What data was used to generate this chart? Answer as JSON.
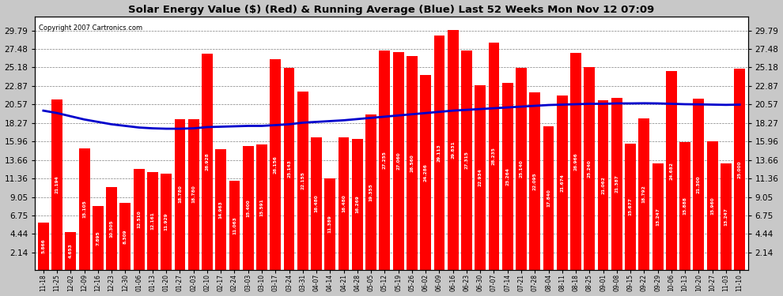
{
  "title": "Solar Energy Value ($) (Red) & Running Average (Blue) Last 52 Weeks Mon Nov 12 07:09",
  "copyright": "Copyright 2007 Cartronics.com",
  "bar_color": "#ff0000",
  "line_color": "#0000cc",
  "background_color": "#c8c8c8",
  "plot_bg_color": "#ffffff",
  "yticks": [
    2.14,
    4.44,
    6.75,
    9.05,
    11.36,
    13.66,
    15.96,
    18.27,
    20.57,
    22.87,
    25.18,
    27.48,
    29.79
  ],
  "ylim": [
    0,
    31.5
  ],
  "categories": [
    "11-18",
    "11-25",
    "12-02",
    "12-09",
    "12-16",
    "12-23",
    "12-30",
    "01-06",
    "01-13",
    "01-20",
    "01-27",
    "02-03",
    "02-10",
    "02-17",
    "02-24",
    "03-03",
    "03-10",
    "03-17",
    "03-24",
    "03-31",
    "04-07",
    "04-14",
    "04-21",
    "04-28",
    "05-05",
    "05-12",
    "05-19",
    "05-26",
    "06-02",
    "06-09",
    "06-16",
    "06-23",
    "06-30",
    "07-07",
    "07-14",
    "07-21",
    "07-28",
    "08-04",
    "08-11",
    "08-18",
    "08-25",
    "09-01",
    "09-08",
    "09-15",
    "09-22",
    "09-29",
    "10-06",
    "10-13",
    "10-20",
    "10-27",
    "11-03",
    "11-10"
  ],
  "values": [
    5.866,
    21.194,
    4.653,
    15.105,
    7.895,
    10.305,
    8.309,
    12.51,
    12.161,
    11.929,
    18.78,
    18.78,
    26.928,
    14.963,
    11.063,
    15.4,
    15.591,
    26.156,
    25.143,
    22.155,
    16.48,
    11.389,
    16.48,
    16.269,
    19.355,
    27.255,
    27.06,
    26.56,
    24.286,
    29.113,
    29.831,
    27.315,
    22.934,
    28.235,
    23.264,
    25.14,
    22.095,
    17.84,
    21.674,
    26.966,
    25.24,
    21.062,
    21.387,
    15.677,
    18.792,
    13.247,
    24.682,
    15.888,
    21.3,
    15.96,
    13.247,
    25.0
  ],
  "running_avg": [
    19.8,
    19.5,
    19.1,
    18.7,
    18.4,
    18.1,
    17.9,
    17.7,
    17.6,
    17.55,
    17.55,
    17.6,
    17.75,
    17.8,
    17.85,
    17.9,
    17.9,
    18.0,
    18.1,
    18.3,
    18.4,
    18.5,
    18.6,
    18.75,
    18.9,
    19.05,
    19.2,
    19.35,
    19.5,
    19.65,
    19.8,
    19.9,
    20.0,
    20.1,
    20.2,
    20.3,
    20.4,
    20.5,
    20.55,
    20.6,
    20.65,
    20.65,
    20.7,
    20.7,
    20.72,
    20.7,
    20.65,
    20.6,
    20.58,
    20.55,
    20.52,
    20.55
  ]
}
